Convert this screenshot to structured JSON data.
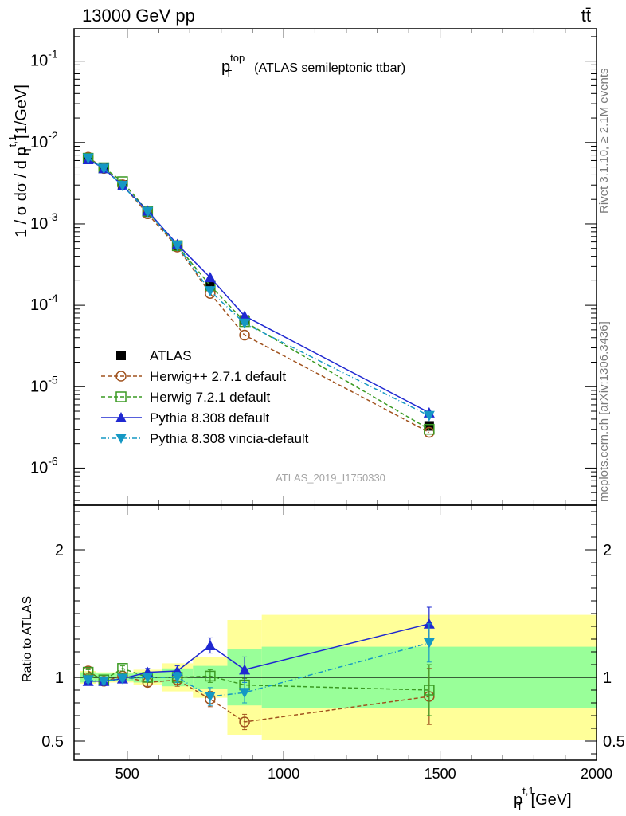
{
  "header": {
    "left": "13000 GeV pp",
    "right": "tt̄"
  },
  "side_labels": {
    "rivet": "Rivet 3.1.10, ≥ 2.1M events",
    "mcplots": "mcplots.cern.ch [arXiv:1306.3436]"
  },
  "watermark": "ATLAS_2019_I1750330",
  "chart_data": {
    "type": "line",
    "title_main": "p",
    "title_sup": "top",
    "title_sub": "T",
    "title_rest": "(ATLAS semileptonic ttbar)",
    "ylabel": {
      "main": "1 / σ dσ / d p",
      "sup": "t,1",
      "sub": "T",
      "unit": "[1/GeV]"
    },
    "xlabel": {
      "main": "p",
      "sup": "t,1",
      "sub": "T",
      "unit": "[GeV]"
    },
    "ratio_ylabel": "Ratio to ATLAS",
    "xlim": [
      330,
      2000
    ],
    "ylim": [
      3.5e-07,
      0.25
    ],
    "ratio_ylim": [
      0.35,
      2.35
    ],
    "x_ticks": [
      500,
      1000,
      1500,
      2000
    ],
    "x_tick_labels": [
      "500",
      "1000",
      "1500",
      "2000"
    ],
    "y_tick_exponents": [
      "-6",
      "-5",
      "-4",
      "-3",
      "-2",
      "-1"
    ],
    "ratio_y_ticks": [
      0.5,
      1,
      2
    ],
    "ratio_y_tick_labels": [
      "0.5",
      "1",
      "2"
    ],
    "x": [
      375,
      425,
      485,
      565,
      660,
      765,
      875,
      1465
    ],
    "bin_edges": [
      350,
      400,
      450,
      520,
      610,
      710,
      820,
      930,
      2000
    ],
    "band_inner_halfwidth": [
      0.04,
      0.03,
      0.03,
      0.04,
      0.07,
      0.09,
      0.22,
      0.24
    ],
    "band_outer_halfwidth": [
      0.05,
      0.04,
      0.04,
      0.06,
      0.11,
      0.16,
      0.45,
      0.49
    ],
    "series": [
      {
        "name": "ATLAS",
        "color": "#000000",
        "marker": "square-filled",
        "dash": "none",
        "values": [
          0.0063,
          0.0049,
          0.003,
          0.00139,
          0.00053,
          0.000178,
          6.6e-05,
          3.3e-06
        ],
        "ratio": [
          1,
          1,
          1,
          1,
          1,
          1,
          1,
          1
        ]
      },
      {
        "name": "Herwig++ 2.7.1 default",
        "color": "#a0521e",
        "marker": "circle-open",
        "dash": "5,3",
        "values": [
          0.0066,
          0.0048,
          0.00302,
          0.00133,
          0.00052,
          0.00014,
          4.3e-05,
          2.75e-06
        ],
        "ratio": [
          1.05,
          0.97,
          1.01,
          0.96,
          0.98,
          0.83,
          0.65,
          0.85
        ],
        "ratio_err": [
          0.02,
          0.02,
          0.02,
          0.03,
          0.05,
          0.06,
          0.06,
          0.22
        ]
      },
      {
        "name": "Herwig 7.2.1 default",
        "color": "#3a9a22",
        "marker": "square-open",
        "dash": "5,3",
        "values": [
          0.0064,
          0.0049,
          0.0033,
          0.00143,
          0.00054,
          0.000175,
          6.3e-05,
          3e-06
        ],
        "ratio": [
          1.04,
          0.98,
          1.07,
          1.0,
          1.0,
          1.01,
          0.94,
          0.9
        ],
        "ratio_err": [
          0.02,
          0.02,
          0.02,
          0.03,
          0.04,
          0.05,
          0.05,
          0.2
        ]
      },
      {
        "name": "Pythia 8.308 default",
        "color": "#1f28d1",
        "marker": "triangle-up",
        "dash": "none",
        "values": [
          0.0062,
          0.0048,
          0.00295,
          0.00145,
          0.00056,
          0.00022,
          7.4e-05,
          4.8e-06
        ],
        "ratio": [
          0.97,
          0.97,
          0.99,
          1.04,
          1.05,
          1.25,
          1.06,
          1.42
        ],
        "ratio_err": [
          0.02,
          0.02,
          0.02,
          0.03,
          0.04,
          0.06,
          0.1,
          0.13
        ]
      },
      {
        "name": "Pythia 8.308 vincia-default",
        "color": "#1598c4",
        "marker": "triangle-down",
        "dash": "6,3,1,3",
        "values": [
          0.0064,
          0.0048,
          0.00295,
          0.00141,
          0.00054,
          0.00015,
          6e-05,
          4.4e-06
        ],
        "ratio": [
          0.98,
          0.97,
          0.99,
          1.0,
          1.0,
          0.85,
          0.88,
          1.27
        ],
        "ratio_err": [
          0.02,
          0.02,
          0.02,
          0.03,
          0.04,
          0.07,
          0.08,
          0.15
        ]
      }
    ]
  }
}
